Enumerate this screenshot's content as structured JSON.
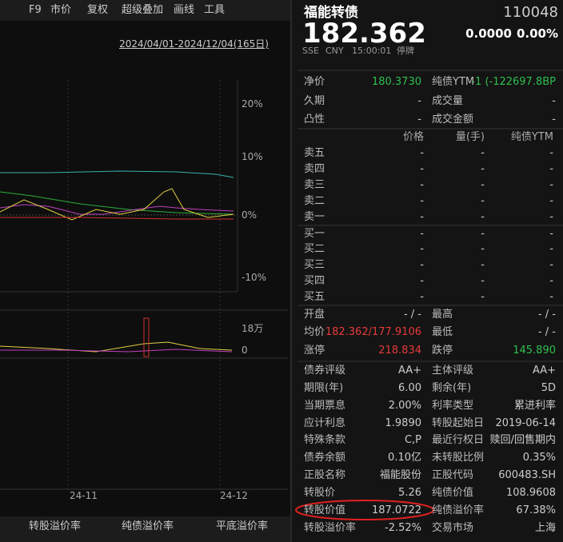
{
  "toolbar": {
    "items": [
      "F9",
      "市价",
      "复权",
      "超级叠加",
      "画线",
      "工具"
    ],
    "date_range": "2024/04/01-2024/12/04(165日)"
  },
  "chart": {
    "y_labels": [
      "20%",
      "10%",
      "0%",
      "-10%"
    ],
    "volume_labels": [
      "18万",
      "0"
    ],
    "x_labels": [
      "24-11",
      "24-12"
    ]
  },
  "tabs": [
    "转股溢价率",
    "纯债溢价率",
    "平底溢价率"
  ],
  "quote": {
    "name": "福能转债",
    "code": "110048",
    "price": "182.362",
    "change": "0.0000",
    "change_pct": "0.00%",
    "exchange": "SSE",
    "currency": "CNY",
    "time": "15:00:01",
    "status": "停牌"
  },
  "stats": [
    [
      "净价",
      "180.3730",
      "纯债YTM",
      "-1 (-122697.8BP"
    ],
    [
      "久期",
      "-",
      "成交量",
      "-"
    ],
    [
      "凸性",
      "-",
      "成交金额",
      "-"
    ]
  ],
  "book": {
    "headers": [
      "价格",
      "量(手)",
      "纯债YTM"
    ],
    "rows": [
      [
        "卖五",
        "-",
        "-",
        "-"
      ],
      [
        "卖四",
        "-",
        "-",
        "-"
      ],
      [
        "卖三",
        "-",
        "-",
        "-"
      ],
      [
        "卖二",
        "-",
        "-",
        "-"
      ],
      [
        "卖一",
        "-",
        "-",
        "-"
      ],
      [
        "买一",
        "-",
        "-",
        "-"
      ],
      [
        "买二",
        "-",
        "-",
        "-"
      ],
      [
        "买三",
        "-",
        "-",
        "-"
      ],
      [
        "买四",
        "-",
        "-",
        "-"
      ],
      [
        "买五",
        "-",
        "-",
        "-"
      ]
    ]
  },
  "summary": [
    [
      "开盘",
      "- / -",
      "最高",
      "- / -"
    ],
    [
      "均价",
      "182.362/177.9106",
      "最低",
      "- / -"
    ],
    [
      "涨停",
      "218.834",
      "跌停",
      "145.890"
    ]
  ],
  "details": [
    [
      "债券评级",
      "AA+",
      "主体评级",
      "AA+"
    ],
    [
      "期限(年)",
      "6.00",
      "剩余(年)",
      "5D"
    ],
    [
      "当期票息",
      "2.00%",
      "利率类型",
      "累进利率"
    ],
    [
      "应计利息",
      "1.9890",
      "转股起始日",
      "2019-06-14"
    ],
    [
      "特殊条款",
      "C,P",
      "最近行权日",
      "赎回/回售期内"
    ],
    [
      "债券余额",
      "0.10亿",
      "未转股比例",
      "0.35%"
    ],
    [
      "正股名称",
      "福能股份",
      "正股代码",
      "600483.SH"
    ],
    [
      "转股价",
      "5.26",
      "纯债价值",
      "108.9608"
    ],
    [
      "转股价值",
      "187.0722",
      "纯债溢价率",
      "67.38%"
    ],
    [
      "转股溢价率",
      "-2.52%",
      "交易市场",
      "上海"
    ]
  ]
}
